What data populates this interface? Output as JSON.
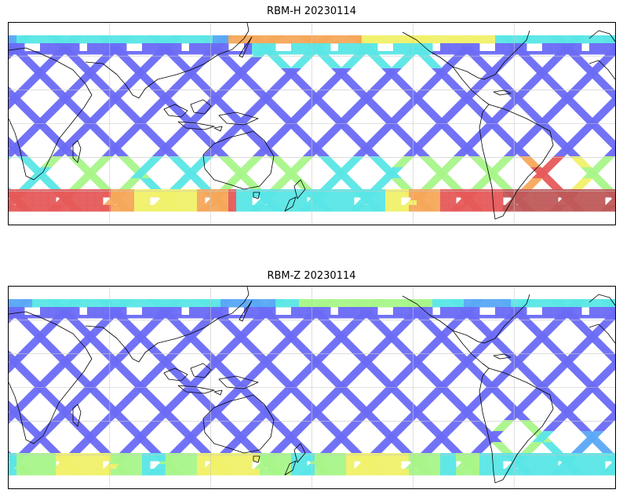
{
  "figure": {
    "panels": [
      {
        "id": "top",
        "title": "RBM-H 20230114",
        "variable": "RBM-H",
        "date": "20230114",
        "projection": "plate-carree",
        "colormap": "jet",
        "colormap_alpha": 0.6,
        "gridlines": true,
        "coastlines": true,
        "notes": "High values (red) near southern high latitudes and in the northern mid-latitude Pacific; mostly low (blue) elsewhere along diamond-shaped satellite swaths."
      },
      {
        "id": "bottom",
        "title": "RBM-Z 20230114",
        "variable": "RBM-Z",
        "date": "20230114",
        "projection": "plate-carree",
        "colormap": "jet",
        "colormap_alpha": 0.6,
        "gridlines": true,
        "coastlines": true,
        "notes": "Predominantly low (blue) values; moderate (cyan/yellow) values along the southern band and northern Pacific."
      }
    ]
  },
  "colors": {
    "low": "#6a6af5",
    "low_mid": "#5aa8f5",
    "mid": "#5ae6e6",
    "mid_high": "#a8f58a",
    "high_mid": "#f0f06a",
    "high": "#f5a85a",
    "highest": "#e65a5a",
    "extreme": "#c05a5a",
    "coastline": "#000000",
    "grid": "#c8c8c8"
  }
}
